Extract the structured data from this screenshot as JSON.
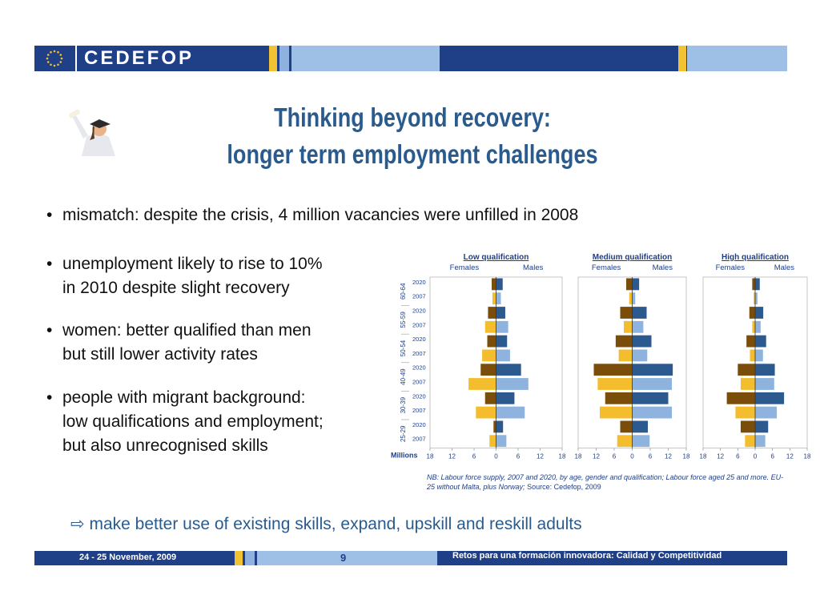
{
  "header": {
    "brand": "CEDEFOP",
    "logo_icon": "eu-stars-icon",
    "colors": {
      "navy": "#1f3f87",
      "gold": "#f2c232",
      "light_blue": "#9fc0e6"
    }
  },
  "illustration": {
    "icon": "graduate-figure-icon"
  },
  "title": {
    "line1": "Thinking beyond recovery:",
    "line2": "longer term employment challenges"
  },
  "bullets": [
    {
      "lines": [
        "mismatch:  despite the crisis, 4 million vacancies were unfilled in 2008"
      ]
    },
    {
      "lines": [
        "unemployment likely to rise to 10%",
        "in 2010 despite slight recovery"
      ]
    },
    {
      "lines": [
        "women: better qualified than men",
        "but still lower activity rates"
      ]
    },
    {
      "lines": [
        "people with migrant background:",
        "low qualifications and employment;",
        "but also unrecognised skills"
      ]
    }
  ],
  "bullet_symbol": "•",
  "chart_data": {
    "type": "bar",
    "orientation": "horizontal",
    "subtype": "population-pyramid",
    "unit_label": "Millions",
    "age_groups": [
      "60-64",
      "55-59",
      "50-54",
      "40-49",
      "30-39",
      "25-29"
    ],
    "years": [
      "2020",
      "2007"
    ],
    "side_labels": {
      "left": "Females",
      "right": "Males"
    },
    "x_ticks": [
      "18",
      "12",
      "6",
      "0",
      "6",
      "12",
      "18"
    ],
    "xlim": [
      -18,
      18
    ],
    "colors": {
      "female_2020": "#7a4d0a",
      "female_2007": "#f4bd2e",
      "male_2020": "#2d5a8e",
      "male_2007": "#8db3de"
    },
    "panels": [
      {
        "title": "Low qualification",
        "rows": [
          {
            "age": "60-64",
            "year": "2020",
            "females": 1.2,
            "males": 1.8
          },
          {
            "age": "60-64",
            "year": "2007",
            "females": 1.0,
            "males": 1.3
          },
          {
            "age": "55-59",
            "year": "2020",
            "females": 2.2,
            "males": 2.5
          },
          {
            "age": "55-59",
            "year": "2007",
            "females": 3.0,
            "males": 3.3
          },
          {
            "age": "50-54",
            "year": "2020",
            "females": 2.4,
            "males": 3.0
          },
          {
            "age": "50-54",
            "year": "2007",
            "females": 3.8,
            "males": 3.8
          },
          {
            "age": "40-49",
            "year": "2020",
            "females": 4.2,
            "males": 6.8
          },
          {
            "age": "40-49",
            "year": "2007",
            "females": 7.5,
            "males": 8.8
          },
          {
            "age": "30-39",
            "year": "2020",
            "females": 3.0,
            "males": 5.0
          },
          {
            "age": "30-39",
            "year": "2007",
            "females": 5.5,
            "males": 7.8
          },
          {
            "age": "25-29",
            "year": "2020",
            "females": 0.7,
            "males": 1.9
          },
          {
            "age": "25-29",
            "year": "2007",
            "females": 1.8,
            "males": 2.8
          }
        ]
      },
      {
        "title": "Medium qualification",
        "rows": [
          {
            "age": "60-64",
            "year": "2020",
            "females": 2.0,
            "males": 2.3
          },
          {
            "age": "60-64",
            "year": "2007",
            "females": 1.0,
            "males": 1.0
          },
          {
            "age": "55-59",
            "year": "2020",
            "females": 4.0,
            "males": 4.8
          },
          {
            "age": "55-59",
            "year": "2007",
            "females": 2.8,
            "males": 3.7
          },
          {
            "age": "50-54",
            "year": "2020",
            "females": 5.5,
            "males": 6.4
          },
          {
            "age": "50-54",
            "year": "2007",
            "females": 4.5,
            "males": 5.0
          },
          {
            "age": "40-49",
            "year": "2020",
            "females": 12.8,
            "males": 13.5
          },
          {
            "age": "40-49",
            "year": "2007",
            "females": 11.5,
            "males": 13.2
          },
          {
            "age": "30-39",
            "year": "2020",
            "females": 9.0,
            "males": 12.0
          },
          {
            "age": "30-39",
            "year": "2007",
            "females": 10.8,
            "males": 13.2
          },
          {
            "age": "25-29",
            "year": "2020",
            "females": 4.0,
            "males": 5.2
          },
          {
            "age": "25-29",
            "year": "2007",
            "females": 5.0,
            "males": 5.8
          }
        ]
      },
      {
        "title": "High qualification",
        "rows": [
          {
            "age": "60-64",
            "year": "2020",
            "females": 1.0,
            "males": 1.6
          },
          {
            "age": "60-64",
            "year": "2007",
            "females": 0.5,
            "males": 0.8
          },
          {
            "age": "55-59",
            "year": "2020",
            "females": 2.0,
            "males": 2.8
          },
          {
            "age": "55-59",
            "year": "2007",
            "females": 1.0,
            "males": 1.9
          },
          {
            "age": "50-54",
            "year": "2020",
            "females": 3.0,
            "males": 3.8
          },
          {
            "age": "50-54",
            "year": "2007",
            "females": 1.8,
            "males": 2.7
          },
          {
            "age": "40-49",
            "year": "2020",
            "females": 6.0,
            "males": 6.8
          },
          {
            "age": "40-49",
            "year": "2007",
            "females": 5.0,
            "males": 6.6
          },
          {
            "age": "30-39",
            "year": "2020",
            "females": 9.8,
            "males": 10.0
          },
          {
            "age": "30-39",
            "year": "2007",
            "females": 6.8,
            "males": 7.5
          },
          {
            "age": "25-29",
            "year": "2020",
            "females": 5.0,
            "males": 4.5
          },
          {
            "age": "25-29",
            "year": "2007",
            "females": 3.5,
            "males": 3.5
          }
        ]
      }
    ]
  },
  "note": {
    "italic": "NB: Labour force supply, 2007 and 2020, by age, gender and qualification; Labour force aged 25 and more. EU-25 without Malta, plus Norway;",
    "source": " Source: Cedefop, 2009"
  },
  "conclusion": {
    "arrow": "⇨",
    "text": "make better use of existing skills, expand, upskill and reskill adults"
  },
  "footer": {
    "date": "24  - 25 November, 2009",
    "page_number": "9",
    "tagline": "Retos para una formación innovadora: Calidad y Competitividad"
  }
}
